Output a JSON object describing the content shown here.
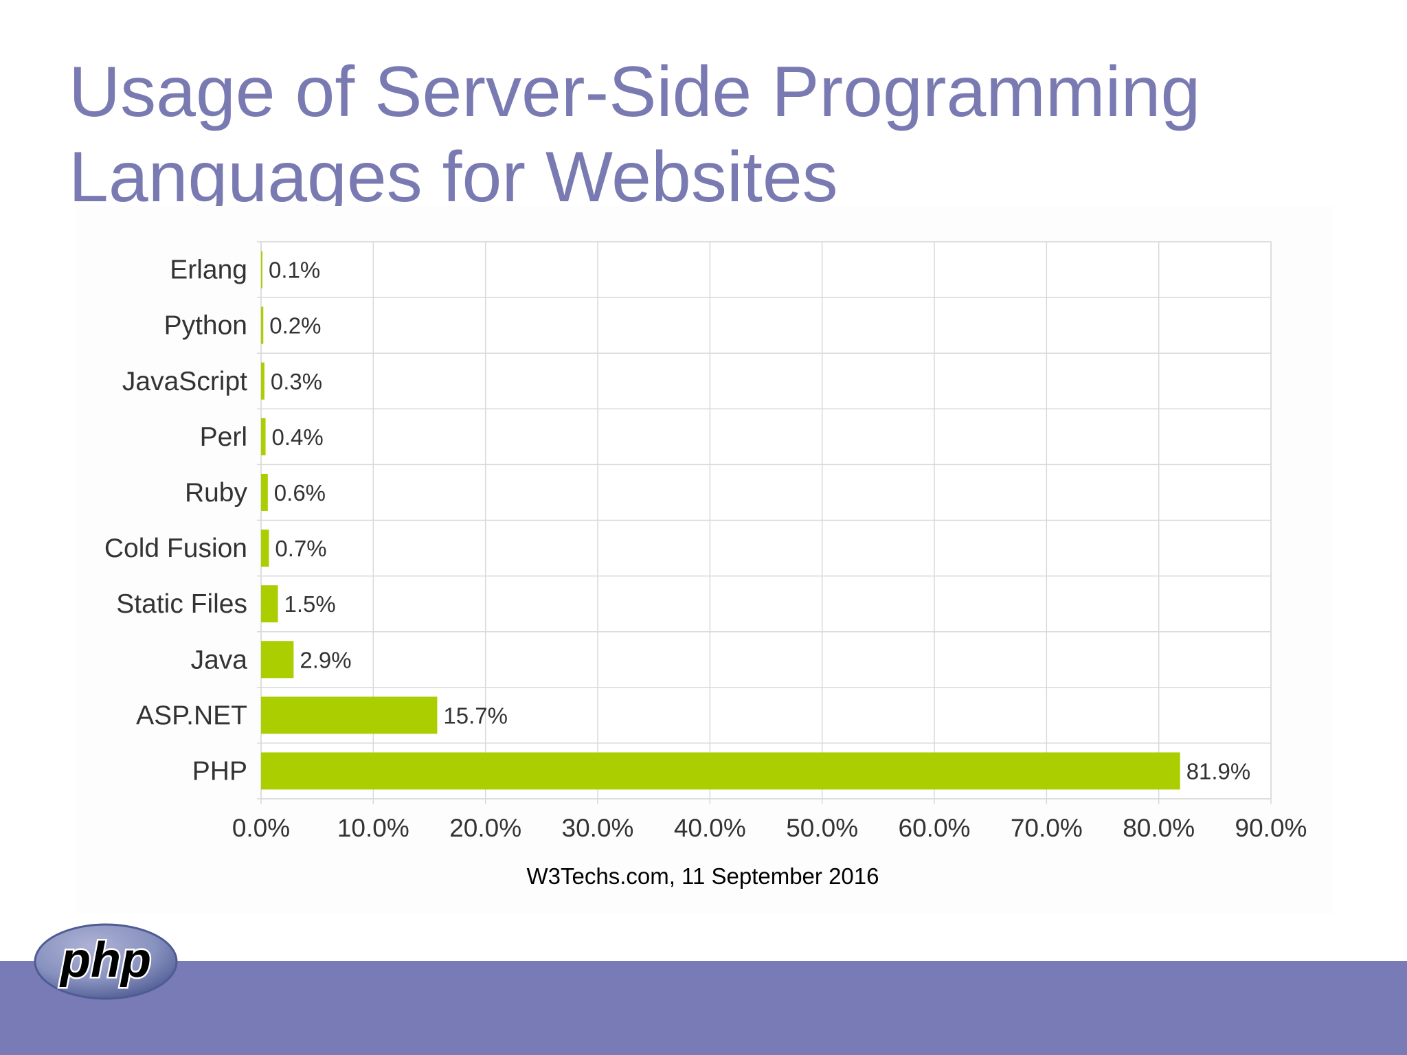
{
  "slide": {
    "title_line1": "Usage of Server-Side Programming",
    "title_line2": "Languages for Websites"
  },
  "logo": {
    "text": "php"
  },
  "colors": {
    "title": "#7a7ab2",
    "bar": "#aace00",
    "footer_band": "#797bb6",
    "grid": "#d9d9d9",
    "label_text": "#333333"
  },
  "chart_data": {
    "type": "bar",
    "orientation": "horizontal",
    "categories": [
      "Erlang",
      "Python",
      "JavaScript",
      "Perl",
      "Ruby",
      "Cold Fusion",
      "Static Files",
      "Java",
      "ASP.NET",
      "PHP"
    ],
    "values": [
      0.1,
      0.2,
      0.3,
      0.4,
      0.6,
      0.7,
      1.5,
      2.9,
      15.7,
      81.9
    ],
    "value_labels": [
      "0.1%",
      "0.2%",
      "0.3%",
      "0.4%",
      "0.6%",
      "0.7%",
      "1.5%",
      "2.9%",
      "15.7%",
      "81.9%"
    ],
    "x_ticks": [
      0,
      10,
      20,
      30,
      40,
      50,
      60,
      70,
      80,
      90
    ],
    "x_tick_labels": [
      "0.0%",
      "10.0%",
      "20.0%",
      "30.0%",
      "40.0%",
      "50.0%",
      "60.0%",
      "70.0%",
      "80.0%",
      "90.0%"
    ],
    "xlim": [
      0,
      90
    ],
    "xlabel": "W3Techs.com, 11 September 2016",
    "ylabel": "",
    "grid": true,
    "legend": false
  }
}
